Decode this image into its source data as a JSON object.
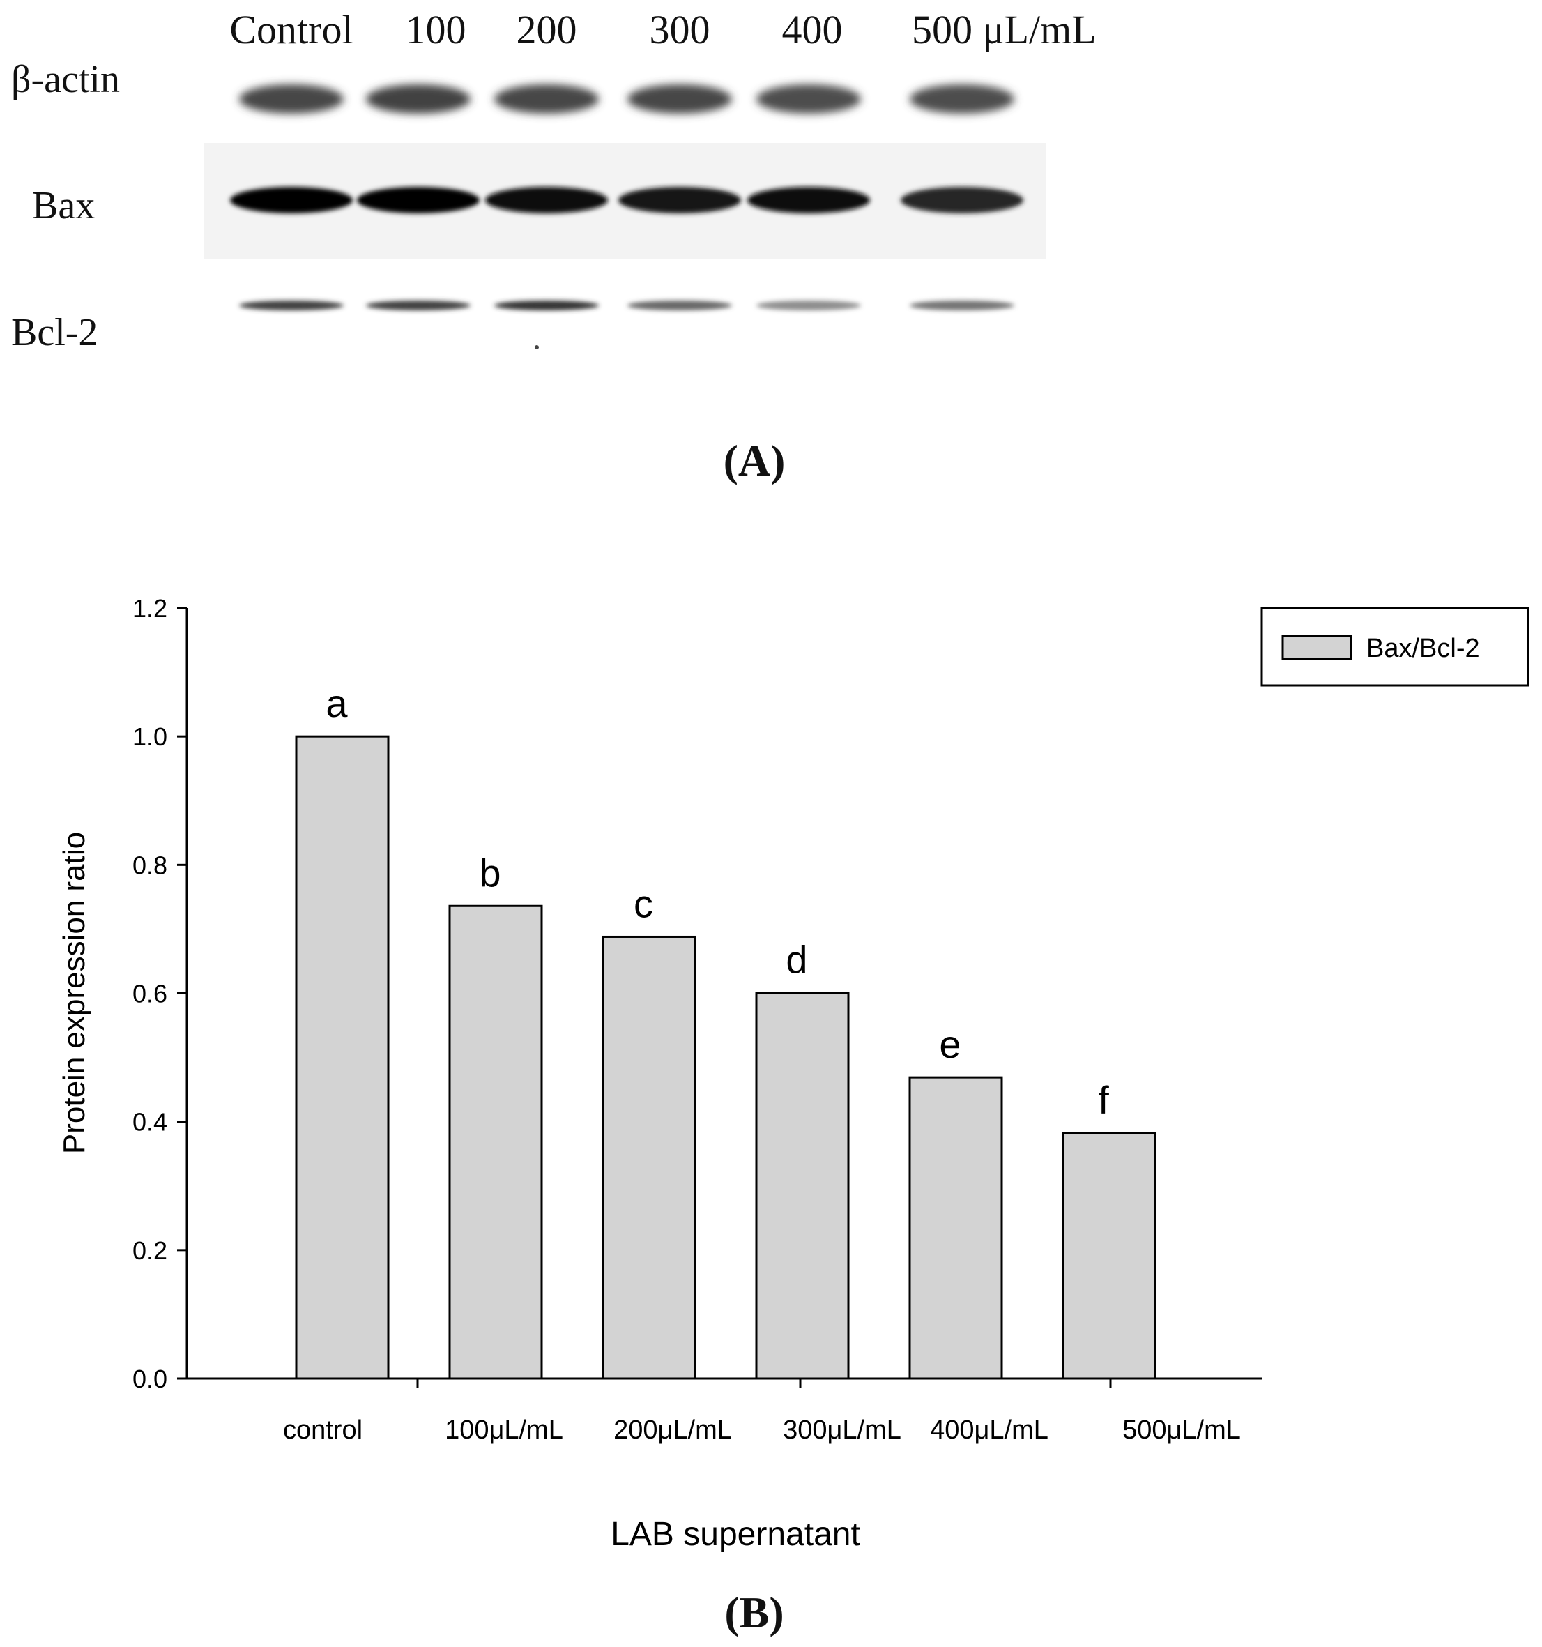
{
  "panel_a": {
    "lane_labels": [
      "Control",
      "100",
      "200",
      "300",
      "400",
      "500 μL/mL"
    ],
    "row_labels": [
      "β-actin",
      "Bax",
      "Bcl-2"
    ],
    "band_intensity": {
      "beta_actin": [
        0.72,
        0.74,
        0.72,
        0.72,
        0.7,
        0.7
      ],
      "bax": [
        1.0,
        1.0,
        0.97,
        0.92,
        0.95,
        0.85
      ],
      "bcl2": [
        0.75,
        0.75,
        0.8,
        0.6,
        0.45,
        0.55
      ]
    },
    "caption": "(A)"
  },
  "panel_b_caption": "(B)",
  "chart_data": {
    "type": "bar",
    "categories": [
      "control",
      "100μL/mL",
      "200μL/mL",
      "300μL/mL",
      "400μL/mL",
      "500μL/mL"
    ],
    "series": [
      {
        "name": "Bax/Bcl-2",
        "values": [
          1.0,
          0.736,
          0.688,
          0.601,
          0.469,
          0.382
        ]
      }
    ],
    "annotations": [
      "a",
      "b",
      "c",
      "d",
      "e",
      "f"
    ],
    "xlabel": "LAB supernatant",
    "ylabel": "Protein expression ratio",
    "ylim": [
      0,
      1.2
    ],
    "yticks": [
      "0.0",
      "0.2",
      "0.4",
      "0.6",
      "0.8",
      "1.0",
      "1.2"
    ],
    "bar_color": "#d3d3d3",
    "grid": false,
    "legend_position": "top-right"
  }
}
